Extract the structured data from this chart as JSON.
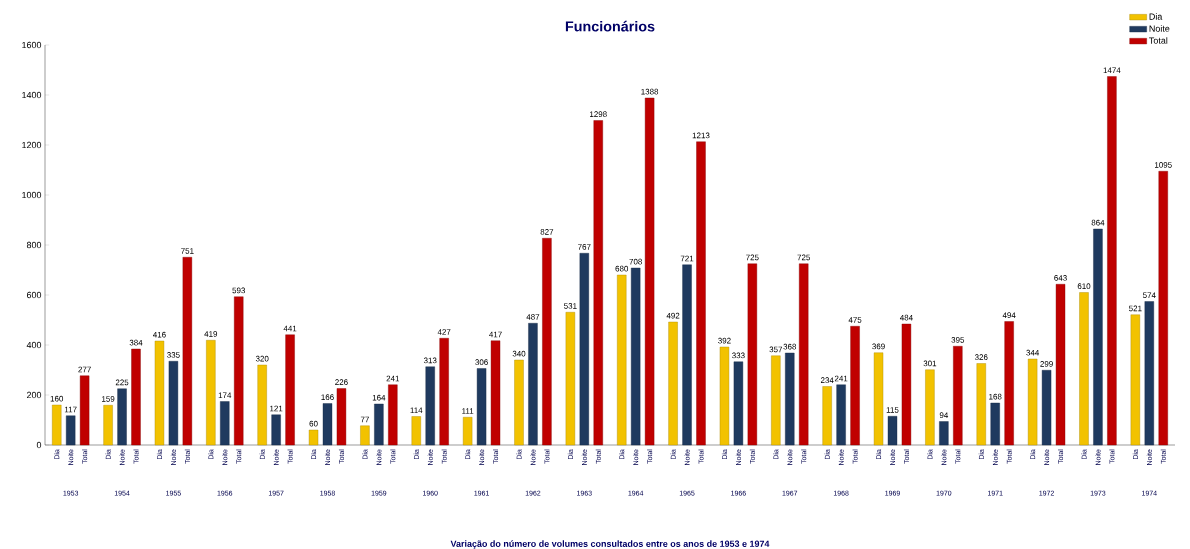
{
  "chart_data": {
    "type": "bar",
    "title": "Funcionários",
    "xlabel": "Variação do número de volumes  consultados entre os anos de 1953 e 1974",
    "categories": [
      "1953",
      "1954",
      "1955",
      "1956",
      "1957",
      "1958",
      "1959",
      "1960",
      "1961",
      "1962",
      "1963",
      "1964",
      "1965",
      "1966",
      "1967",
      "1968",
      "1969",
      "1970",
      "1971",
      "1972",
      "1973",
      "1974"
    ],
    "series": [
      {
        "name": "Dia",
        "color": "#f2c200",
        "values": [
          160,
          159,
          416,
          419,
          320,
          60,
          77,
          114,
          111,
          340,
          531,
          680,
          492,
          392,
          357,
          234,
          369,
          301,
          326,
          344,
          610,
          521
        ]
      },
      {
        "name": "Noite",
        "color": "#1f3a5f",
        "values": [
          117,
          225,
          335,
          174,
          121,
          166,
          164,
          313,
          306,
          487,
          767,
          708,
          721,
          333,
          368,
          241,
          115,
          94,
          168,
          299,
          864,
          574
        ]
      },
      {
        "name": "Total",
        "color": "#c00000",
        "values": [
          277,
          384,
          751,
          593,
          441,
          226,
          241,
          427,
          417,
          827,
          1298,
          1388,
          1213,
          725,
          725,
          475,
          484,
          395,
          494,
          643,
          1474,
          1095
        ]
      }
    ],
    "ylim": [
      0,
      1600
    ],
    "yticks": [
      0,
      200,
      400,
      600,
      800,
      1000,
      1200,
      1400,
      1600
    ],
    "legend": "top right",
    "data_labels": true
  }
}
